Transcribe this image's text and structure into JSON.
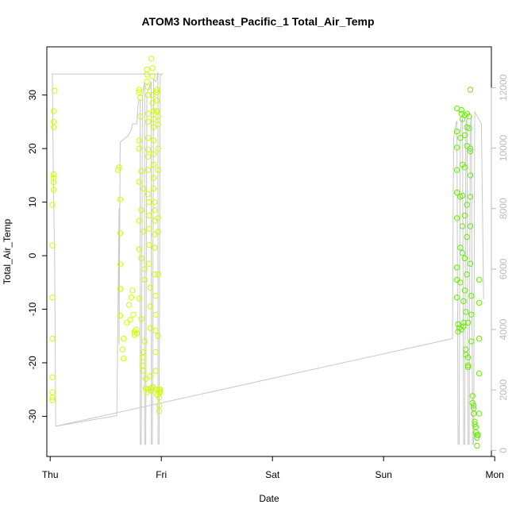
{
  "chart_data": {
    "type": "scatter",
    "title": "ATOM3 Northeast_Pacific_1 Total_Air_Temp",
    "xlabel": "Date",
    "ylabel": "Total_Air_Temp",
    "x_domain_days": [
      -0.03,
      3.97
    ],
    "x_ticks": [
      {
        "pos": 0,
        "label": "Thu"
      },
      {
        "pos": 1,
        "label": "Fri"
      },
      {
        "pos": 2,
        "label": "Sat"
      },
      {
        "pos": 3,
        "label": "Sun"
      },
      {
        "pos": 4,
        "label": "Mon"
      }
    ],
    "ylim": [
      -37.5,
      39.0
    ],
    "y_ticks": [
      -30,
      -20,
      -10,
      0,
      10,
      20,
      30
    ],
    "y2lim": [
      -200,
      13350
    ],
    "y2_ticks": [
      0,
      2000,
      4000,
      6000,
      8000,
      10000,
      12000
    ],
    "grid": false,
    "colors": {
      "points_early": "#ccff00",
      "points_late": "#66ee00",
      "line": "#c8c8c8",
      "right_axis": "#bbbbbb"
    },
    "series": [
      {
        "points_day_value": [
          [
            0.02,
            -27.0
          ],
          [
            0.02,
            -25.5
          ],
          [
            0.02,
            -26.5
          ],
          [
            0.02,
            -22.7
          ],
          [
            0.02,
            -15.5
          ],
          [
            0.02,
            -7.8
          ],
          [
            0.02,
            1.9
          ],
          [
            0.02,
            9.5
          ],
          [
            0.03,
            12.3
          ],
          [
            0.03,
            13.7
          ],
          [
            0.03,
            14.5
          ],
          [
            0.03,
            15.2
          ],
          [
            0.03,
            24.0
          ],
          [
            0.03,
            25.0
          ],
          [
            0.03,
            27.0
          ],
          [
            0.04,
            30.8
          ],
          [
            0.61,
            16.0
          ],
          [
            0.62,
            16.5
          ],
          [
            0.63,
            10.5
          ],
          [
            0.63,
            4.2
          ],
          [
            0.63,
            -1.6
          ],
          [
            0.63,
            -6.2
          ],
          [
            0.63,
            -11.2
          ],
          [
            0.65,
            -17.5
          ],
          [
            0.66,
            -19.2
          ],
          [
            0.66,
            -15.5
          ],
          [
            0.69,
            -12.5
          ],
          [
            0.71,
            -9.2
          ],
          [
            0.72,
            -12.0
          ],
          [
            0.73,
            -7.8
          ],
          [
            0.74,
            -6.5
          ],
          [
            0.75,
            -11.0
          ],
          [
            0.76,
            -14.2
          ],
          [
            0.76,
            -14.8
          ],
          [
            0.77,
            -13.8
          ],
          [
            0.78,
            -14.5
          ],
          [
            0.8,
            31.0
          ],
          [
            0.8,
            30.5
          ],
          [
            0.81,
            29.5
          ],
          [
            0.81,
            26.0
          ],
          [
            0.8,
            21.5
          ],
          [
            0.8,
            20.0
          ],
          [
            0.8,
            13.8
          ],
          [
            0.8,
            6.5
          ],
          [
            0.8,
            1.2
          ],
          [
            0.8,
            -8.0
          ],
          [
            0.82,
            15.8
          ],
          [
            0.82,
            8.5
          ],
          [
            0.82,
            -0.5
          ],
          [
            0.82,
            -11.8
          ],
          [
            0.83,
            -19.0
          ],
          [
            0.83,
            -20.5
          ],
          [
            0.84,
            -21.5
          ],
          [
            0.84,
            -18.0
          ],
          [
            0.84,
            12.5
          ],
          [
            0.84,
            4.5
          ],
          [
            0.85,
            -4.5
          ],
          [
            0.85,
            -2.5
          ],
          [
            0.85,
            -16.0
          ],
          [
            0.86,
            -23.0
          ],
          [
            0.86,
            -24.8
          ],
          [
            0.87,
            -25.5
          ],
          [
            0.88,
            -25.0
          ],
          [
            0.87,
            34.8
          ],
          [
            0.87,
            33.8
          ],
          [
            0.87,
            32.5
          ],
          [
            0.88,
            31.5
          ],
          [
            0.88,
            30.0
          ],
          [
            0.88,
            26.5
          ],
          [
            0.88,
            25.0
          ],
          [
            0.88,
            22.0
          ],
          [
            0.88,
            19.8
          ],
          [
            0.88,
            18.5
          ],
          [
            0.88,
            16.0
          ],
          [
            0.88,
            11.5
          ],
          [
            0.89,
            10.0
          ],
          [
            0.89,
            7.5
          ],
          [
            0.89,
            5.0
          ],
          [
            0.89,
            2.0
          ],
          [
            0.89,
            -1.5
          ],
          [
            0.9,
            -6.0
          ],
          [
            0.9,
            -9.5
          ],
          [
            0.9,
            -13.5
          ],
          [
            0.9,
            -22.5
          ],
          [
            0.91,
            -24.8
          ],
          [
            0.91,
            -25.2
          ],
          [
            0.92,
            -24.5
          ],
          [
            0.91,
            36.8
          ],
          [
            0.92,
            35.0
          ],
          [
            0.92,
            33.5
          ],
          [
            0.92,
            30.0
          ],
          [
            0.92,
            28.5
          ],
          [
            0.93,
            27.0
          ],
          [
            0.93,
            25.5
          ],
          [
            0.93,
            24.0
          ],
          [
            0.93,
            21.5
          ],
          [
            0.93,
            19.0
          ],
          [
            0.93,
            17.0
          ],
          [
            0.93,
            14.5
          ],
          [
            0.93,
            12.5
          ],
          [
            0.94,
            10.0
          ],
          [
            0.94,
            8.5
          ],
          [
            0.94,
            6.5
          ],
          [
            0.94,
            4.0
          ],
          [
            0.94,
            1.5
          ],
          [
            0.94,
            -3.5
          ],
          [
            0.95,
            -7.5
          ],
          [
            0.95,
            -11.0
          ],
          [
            0.95,
            -14.0
          ],
          [
            0.95,
            -18.0
          ],
          [
            0.95,
            -21.5
          ],
          [
            0.96,
            -25.0
          ],
          [
            0.96,
            -26.0
          ],
          [
            0.96,
            31.0
          ],
          [
            0.96,
            30.5
          ],
          [
            0.96,
            29.0
          ],
          [
            0.96,
            27.0
          ],
          [
            0.97,
            26.0
          ],
          [
            0.97,
            24.5
          ],
          [
            0.97,
            20.0
          ],
          [
            0.97,
            16.0
          ],
          [
            0.97,
            7.0
          ],
          [
            0.97,
            4.5
          ],
          [
            0.97,
            -3.5
          ],
          [
            0.97,
            -15.0
          ],
          [
            0.98,
            -25.0
          ],
          [
            0.98,
            -25.5
          ],
          [
            0.98,
            -26.5
          ],
          [
            0.98,
            -28.0
          ],
          [
            0.98,
            -29.0
          ],
          [
            0.99,
            -25.0
          ],
          [
            0.99,
            -25.5
          ]
        ],
        "color": "#ccff00"
      },
      {
        "points_day_value": [
          [
            3.66,
            27.5
          ],
          [
            3.66,
            23.2
          ],
          [
            3.66,
            20.2
          ],
          [
            3.66,
            16.0
          ],
          [
            3.66,
            11.8
          ],
          [
            3.66,
            7.0
          ],
          [
            3.66,
            -2.2
          ],
          [
            3.66,
            -4.5
          ],
          [
            3.66,
            -7.8
          ],
          [
            3.67,
            -12.8
          ],
          [
            3.67,
            -14.2
          ],
          [
            3.68,
            -13.5
          ],
          [
            3.69,
            22.0
          ],
          [
            3.69,
            11.0
          ],
          [
            3.69,
            1.5
          ],
          [
            3.69,
            -5.0
          ],
          [
            3.7,
            -13.8
          ],
          [
            3.7,
            27.2
          ],
          [
            3.7,
            26.5
          ],
          [
            3.71,
            25.5
          ],
          [
            3.71,
            17.0
          ],
          [
            3.71,
            11.2
          ],
          [
            3.71,
            5.5
          ],
          [
            3.71,
            0.5
          ],
          [
            3.72,
            -8.5
          ],
          [
            3.72,
            -12.5
          ],
          [
            3.72,
            -13.2
          ],
          [
            3.73,
            26.2
          ],
          [
            3.73,
            22.5
          ],
          [
            3.73,
            16.5
          ],
          [
            3.73,
            7.5
          ],
          [
            3.73,
            -0.5
          ],
          [
            3.73,
            -6.5
          ],
          [
            3.74,
            -10.5
          ],
          [
            3.74,
            -17.5
          ],
          [
            3.74,
            -18.5
          ],
          [
            3.75,
            26.5
          ],
          [
            3.75,
            24.0
          ],
          [
            3.75,
            20.5
          ],
          [
            3.75,
            9.5
          ],
          [
            3.75,
            3.5
          ],
          [
            3.75,
            -3.5
          ],
          [
            3.76,
            -12.5
          ],
          [
            3.76,
            -19.0
          ],
          [
            3.76,
            -20.8
          ],
          [
            3.76,
            -20.5
          ],
          [
            3.77,
            26.0
          ],
          [
            3.77,
            23.8
          ],
          [
            3.78,
            20.0
          ],
          [
            3.78,
            19.5
          ],
          [
            3.78,
            15.0
          ],
          [
            3.78,
            11.0
          ],
          [
            3.78,
            5.5
          ],
          [
            3.78,
            -1.5
          ],
          [
            3.79,
            -7.5
          ],
          [
            3.79,
            -11.0
          ],
          [
            3.79,
            -16.0
          ],
          [
            3.8,
            -26.2
          ],
          [
            3.8,
            -27.5
          ],
          [
            3.81,
            -28.0
          ],
          [
            3.81,
            -28.5
          ],
          [
            3.81,
            -29.5
          ],
          [
            3.82,
            -31.0
          ],
          [
            3.82,
            -31.5
          ],
          [
            3.83,
            -32.0
          ],
          [
            3.83,
            -33.0
          ],
          [
            3.84,
            -33.5
          ],
          [
            3.84,
            -34.0
          ],
          [
            3.85,
            -33.5
          ],
          [
            3.84,
            -35.5
          ],
          [
            3.86,
            -29.5
          ],
          [
            3.86,
            -22.0
          ],
          [
            3.86,
            -15.5
          ],
          [
            3.86,
            -8.8
          ],
          [
            3.86,
            -4.5
          ],
          [
            3.78,
            31.0
          ]
        ],
        "color": "#66ee00"
      }
    ],
    "line_series": {
      "axis": "right",
      "points_day_value": [
        [
          0.01,
          12450
        ],
        [
          0.02,
          12450
        ],
        [
          0.03,
          8500
        ],
        [
          0.04,
          6500
        ],
        [
          0.05,
          800
        ],
        [
          0.6,
          1150
        ],
        [
          0.62,
          8000
        ],
        [
          0.62,
          3500
        ],
        [
          0.62,
          3800
        ],
        [
          0.63,
          10200
        ],
        [
          0.7,
          10400
        ],
        [
          0.73,
          10600
        ],
        [
          0.74,
          10800
        ],
        [
          0.78,
          10800
        ],
        [
          0.79,
          11400
        ],
        [
          0.8,
          11600
        ],
        [
          0.81,
          11600
        ],
        [
          0.81,
          200
        ],
        [
          0.82,
          200
        ],
        [
          0.83,
          11700
        ],
        [
          0.84,
          12000
        ],
        [
          0.85,
          12200
        ],
        [
          0.85,
          200
        ],
        [
          0.86,
          200
        ],
        [
          0.87,
          11800
        ],
        [
          0.9,
          12100
        ],
        [
          0.91,
          12200
        ],
        [
          0.91,
          200
        ],
        [
          0.92,
          200
        ],
        [
          0.93,
          12300
        ],
        [
          0.95,
          12200
        ],
        [
          0.96,
          12300
        ],
        [
          0.97,
          12500
        ],
        [
          0.97,
          200
        ],
        [
          0.98,
          200
        ],
        [
          0.99,
          12400
        ],
        [
          1.01,
          12450
        ],
        [
          0.99,
          12450
        ],
        [
          0.2,
          12450
        ],
        [
          0.01,
          12450
        ]
      ],
      "points_trend": [
        [
          0.05,
          800
        ],
        [
          3.62,
          3700
        ]
      ],
      "points_mon": [
        [
          3.62,
          3700
        ],
        [
          3.63,
          10300
        ],
        [
          3.64,
          10600
        ],
        [
          3.65,
          10800
        ],
        [
          3.66,
          10900
        ],
        [
          3.67,
          200
        ],
        [
          3.68,
          200
        ],
        [
          3.69,
          10400
        ],
        [
          3.7,
          10900
        ],
        [
          3.71,
          11000
        ],
        [
          3.72,
          200
        ],
        [
          3.73,
          200
        ],
        [
          3.74,
          10800
        ],
        [
          3.75,
          11000
        ],
        [
          3.76,
          200
        ],
        [
          3.77,
          200
        ],
        [
          3.78,
          10700
        ],
        [
          3.79,
          11100
        ],
        [
          3.8,
          200
        ],
        [
          3.81,
          200
        ],
        [
          3.82,
          11200
        ],
        [
          3.88,
          10800
        ],
        [
          3.9,
          5000
        ]
      ]
    }
  }
}
